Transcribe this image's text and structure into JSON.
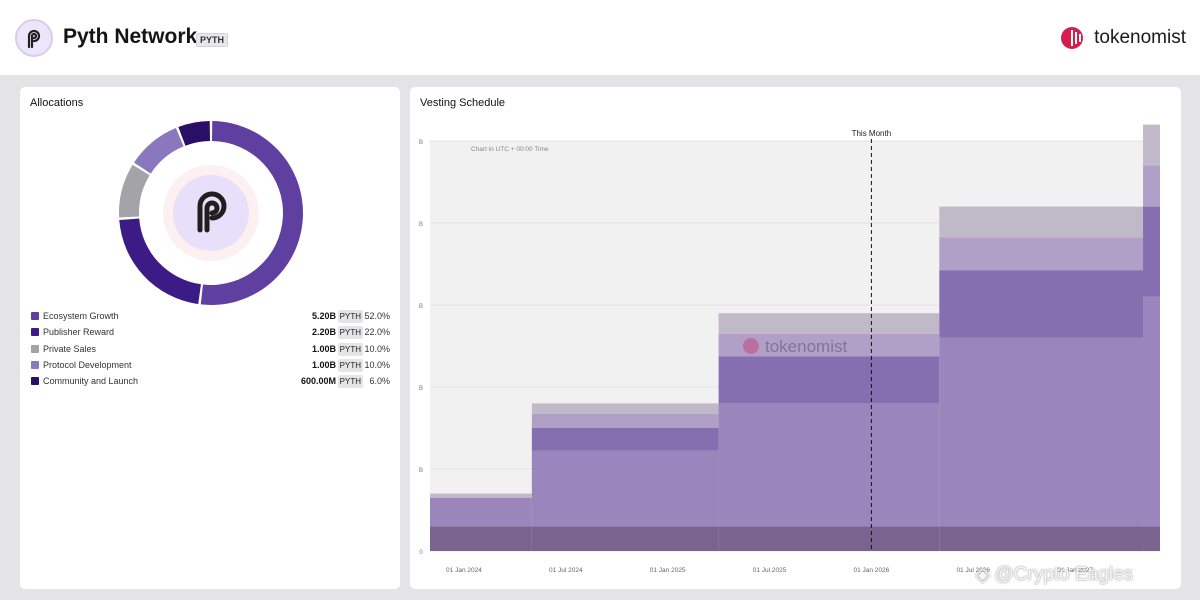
{
  "header": {
    "token_name": "Pyth Network",
    "ticker": "PYTH",
    "brand": "tokenomist"
  },
  "allocations": {
    "title": "Allocations",
    "items": [
      {
        "name": "Ecosystem Growth",
        "amount": "5.20B",
        "ticker": "PYTH",
        "percent": "52.0%",
        "value": 52.0,
        "color": "#5f3f9f"
      },
      {
        "name": "Publisher Reward",
        "amount": "2.20B",
        "ticker": "PYTH",
        "percent": "22.0%",
        "value": 22.0,
        "color": "#3c1b86"
      },
      {
        "name": "Private Sales",
        "amount": "1.00B",
        "ticker": "PYTH",
        "percent": "10.0%",
        "value": 10.0,
        "color": "#a3a3a8"
      },
      {
        "name": "Protocol Development",
        "amount": "1.00B",
        "ticker": "PYTH",
        "percent": "10.0%",
        "value": 10.0,
        "color": "#8a77bd"
      },
      {
        "name": "Community and Launch",
        "amount": "600.00M",
        "ticker": "PYTH",
        "percent": "6.0%",
        "value": 6.0,
        "color": "#2a0f66"
      }
    ]
  },
  "vesting": {
    "title": "Vesting Schedule",
    "note": "Chart in UTC + 00:00 Time",
    "this_month_label": "This Month",
    "watermark": "tokenomist"
  },
  "chart_data": {
    "type": "area",
    "title": "Vesting Schedule",
    "x": [
      "01 Jan 2024",
      "01 Jul 2024",
      "01 Jan 2025",
      "01 Jul 2025",
      "01 Jan 2026",
      "01 Jul 2026",
      "01 Jan 2027"
    ],
    "x_ticks": [
      "01 Jan 2024",
      "01 Jul 2024",
      "01 Jan 2025",
      "01 Jul 2025",
      "01 Jan 2026",
      "01 Jul 2026",
      "01 Jan 2027"
    ],
    "y_tick_labels": [
      "0",
      "B",
      "B",
      "B",
      "B",
      "B"
    ],
    "grid": true,
    "series_colors": [
      "#7a648f",
      "#9a86bd",
      "#866fb0",
      "#b0a0c8",
      "#c0b9c8"
    ],
    "steps": [
      {
        "start": "Nov 2023",
        "end": "May 2024",
        "layers": [
          0.6,
          0.7,
          0.0,
          0.0,
          0.1
        ]
      },
      {
        "start": "May 2024",
        "end": "Apr 2025",
        "layers": [
          0.6,
          1.85,
          0.55,
          0.35,
          0.25
        ]
      },
      {
        "start": "Apr 2025",
        "end": "May 2026",
        "layers": [
          0.6,
          3.0,
          1.15,
          0.55,
          0.5
        ]
      },
      {
        "start": "May 2026",
        "end": "May 2027",
        "layers": [
          0.6,
          4.6,
          1.65,
          0.8,
          0.75
        ]
      },
      {
        "start": "May 2027",
        "end": "Jun 2027",
        "layers": [
          0.6,
          5.6,
          2.2,
          1.0,
          1.0
        ]
      }
    ],
    "this_month": "Jan 2026"
  },
  "footer": {
    "watermark": "@Crypto Eagles"
  }
}
